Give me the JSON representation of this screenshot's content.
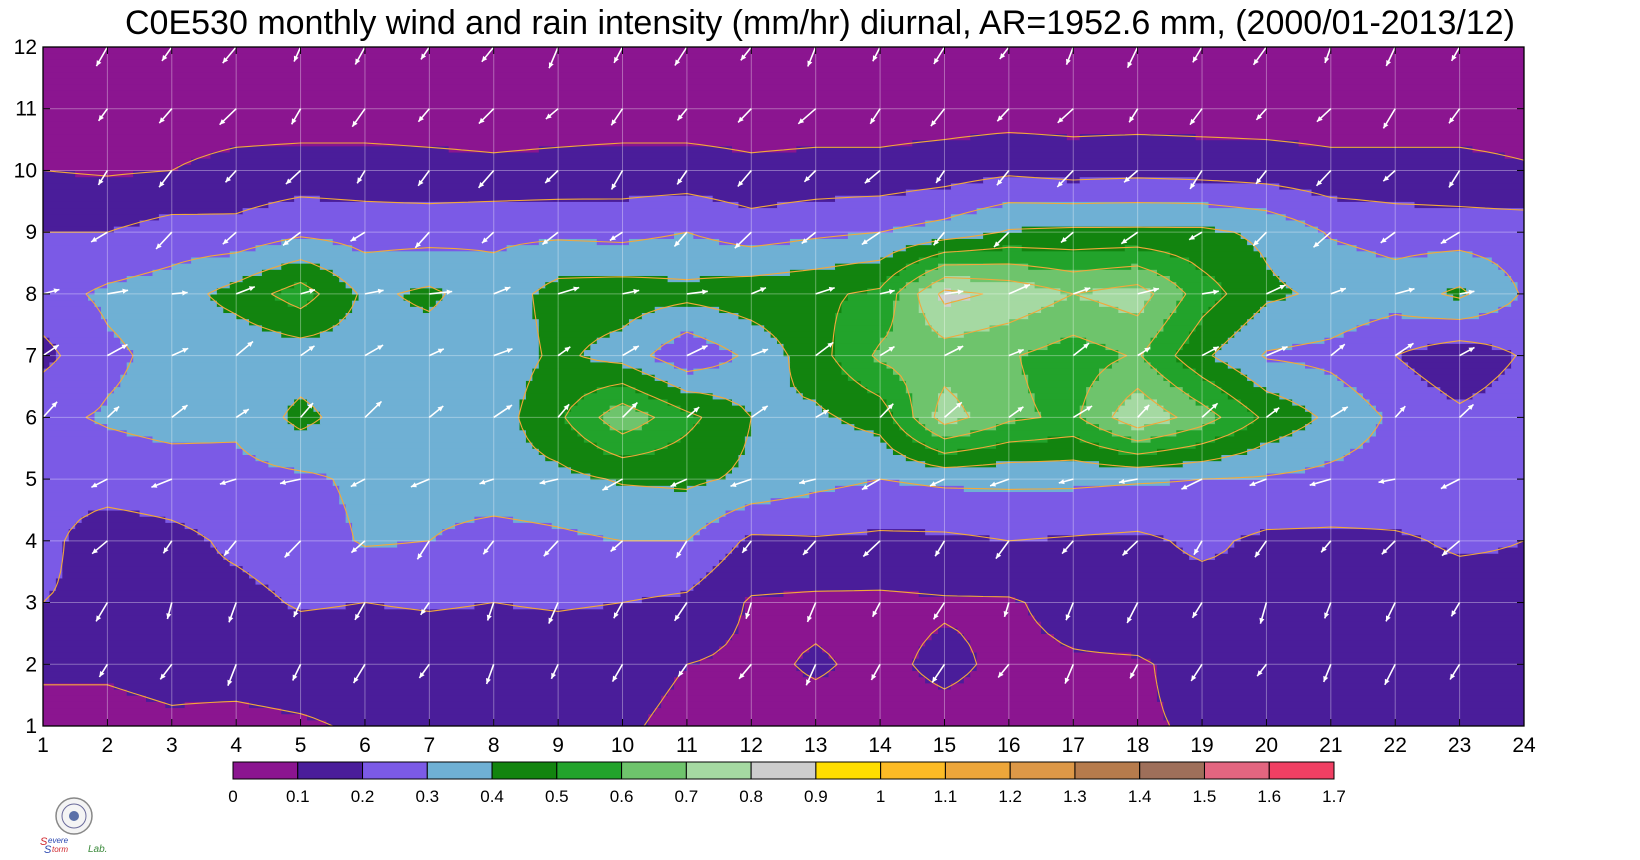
{
  "chart_data": {
    "type": "heatmap",
    "subtype": "filled-contour with wind vectors",
    "title": "C0E530 monthly wind and rain intensity (mm/hr) diurnal, AR=1952.6 mm, (2000/01-2013/12)",
    "x_ticks": [
      "1",
      "2",
      "3",
      "4",
      "5",
      "6",
      "7",
      "8",
      "9",
      "10",
      "11",
      "12",
      "13",
      "14",
      "15",
      "16",
      "17",
      "18",
      "19",
      "20",
      "21",
      "22",
      "23",
      "24"
    ],
    "y_ticks": [
      "1",
      "2",
      "3",
      "4",
      "5",
      "6",
      "7",
      "8",
      "9",
      "10",
      "11",
      "12"
    ],
    "xlim": [
      1,
      24
    ],
    "ylim": [
      1,
      12
    ],
    "grid": true,
    "x": [
      1,
      2,
      3,
      4,
      5,
      6,
      7,
      8,
      9,
      10,
      11,
      12,
      13,
      14,
      15,
      16,
      17,
      18,
      19,
      20,
      21,
      22,
      23,
      24
    ],
    "y": [
      1,
      2,
      3,
      4,
      5,
      6,
      7,
      8,
      9,
      10,
      11,
      12
    ],
    "z": [
      [
        0.08,
        0.08,
        0.09,
        0.08,
        0.09,
        0.11,
        0.11,
        0.1,
        0.1,
        0.11,
        0.08,
        0.08,
        0.07,
        0.07,
        0.07,
        0.07,
        0.08,
        0.09,
        0.11,
        0.11,
        0.11,
        0.11,
        0.1,
        0.11
      ],
      [
        0.11,
        0.11,
        0.12,
        0.13,
        0.14,
        0.14,
        0.14,
        0.14,
        0.14,
        0.13,
        0.1,
        0.08,
        0.11,
        0.08,
        0.12,
        0.08,
        0.09,
        0.09,
        0.13,
        0.15,
        0.15,
        0.11,
        0.16,
        0.16
      ],
      [
        0.2,
        0.18,
        0.18,
        0.17,
        0.21,
        0.2,
        0.21,
        0.2,
        0.21,
        0.2,
        0.18,
        0.09,
        0.08,
        0.08,
        0.09,
        0.09,
        0.13,
        0.16,
        0.16,
        0.19,
        0.19,
        0.17,
        0.17,
        0.18
      ],
      [
        0.23,
        0.14,
        0.17,
        0.22,
        0.25,
        0.31,
        0.3,
        0.26,
        0.28,
        0.3,
        0.3,
        0.18,
        0.19,
        0.18,
        0.18,
        0.2,
        0.19,
        0.18,
        0.22,
        0.18,
        0.18,
        0.19,
        0.21,
        0.2
      ],
      [
        0.23,
        0.25,
        0.26,
        0.27,
        0.28,
        0.32,
        0.34,
        0.36,
        0.37,
        0.41,
        0.42,
        0.38,
        0.33,
        0.3,
        0.32,
        0.32,
        0.32,
        0.31,
        0.3,
        0.29,
        0.27,
        0.25,
        0.24,
        0.23
      ],
      [
        0.28,
        0.31,
        0.33,
        0.32,
        0.43,
        0.34,
        0.37,
        0.35,
        0.48,
        0.67,
        0.53,
        0.4,
        0.38,
        0.44,
        0.75,
        0.62,
        0.58,
        0.78,
        0.65,
        0.48,
        0.38,
        0.28,
        0.22,
        0.26
      ],
      [
        0.17,
        0.28,
        0.33,
        0.32,
        0.34,
        0.35,
        0.35,
        0.34,
        0.42,
        0.36,
        0.22,
        0.32,
        0.46,
        0.62,
        0.65,
        0.61,
        0.55,
        0.61,
        0.42,
        0.29,
        0.27,
        0.2,
        0.13,
        0.21
      ],
      [
        0.26,
        0.32,
        0.35,
        0.44,
        0.55,
        0.38,
        0.42,
        0.34,
        0.44,
        0.45,
        0.43,
        0.46,
        0.48,
        0.52,
        0.83,
        0.78,
        0.7,
        0.75,
        0.55,
        0.42,
        0.38,
        0.35,
        0.42,
        0.29
      ],
      [
        0.2,
        0.2,
        0.24,
        0.23,
        0.28,
        0.26,
        0.26,
        0.28,
        0.28,
        0.27,
        0.3,
        0.25,
        0.28,
        0.3,
        0.34,
        0.41,
        0.42,
        0.42,
        0.42,
        0.38,
        0.29,
        0.26,
        0.25,
        0.25
      ],
      [
        0.1,
        0.09,
        0.1,
        0.13,
        0.14,
        0.14,
        0.13,
        0.12,
        0.13,
        0.14,
        0.14,
        0.12,
        0.13,
        0.13,
        0.15,
        0.18,
        0.16,
        0.17,
        0.16,
        0.15,
        0.13,
        0.13,
        0.13,
        0.11
      ],
      [
        0.05,
        0.05,
        0.05,
        0.05,
        0.05,
        0.05,
        0.05,
        0.05,
        0.05,
        0.05,
        0.05,
        0.05,
        0.05,
        0.05,
        0.05,
        0.05,
        0.05,
        0.05,
        0.05,
        0.05,
        0.05,
        0.05,
        0.05,
        0.05
      ],
      [
        0.04,
        0.04,
        0.04,
        0.04,
        0.04,
        0.04,
        0.04,
        0.04,
        0.04,
        0.04,
        0.04,
        0.04,
        0.04,
        0.04,
        0.04,
        0.04,
        0.04,
        0.04,
        0.04,
        0.04,
        0.04,
        0.04,
        0.04,
        0.04
      ]
    ],
    "wind": {
      "comment": "arrow direction by month row, in degrees (0 = east, 90 = north)",
      "rows": [
        {
          "y": 1,
          "angle": -120
        },
        {
          "y": 2,
          "angle": -120
        },
        {
          "y": 3,
          "angle": -115
        },
        {
          "y": 4,
          "angle": -130
        },
        {
          "y": 5,
          "angle": -160
        },
        {
          "y": 6,
          "angle": 40
        },
        {
          "y": 7,
          "angle": 30
        },
        {
          "y": 8,
          "angle": 15
        },
        {
          "y": 9,
          "angle": -140
        },
        {
          "y": 10,
          "angle": -130
        },
        {
          "y": 11,
          "angle": -130
        },
        {
          "y": 12,
          "angle": -120
        }
      ]
    },
    "colorbar": {
      "levels": [
        "0",
        "0.1",
        "0.2",
        "0.3",
        "0.4",
        "0.5",
        "0.6",
        "0.7",
        "0.8",
        "0.9",
        "1",
        "1.1",
        "1.2",
        "1.3",
        "1.4",
        "1.5",
        "1.6",
        "1.7"
      ],
      "colors": [
        "#8b1590",
        "#4a1d9a",
        "#7b5ae6",
        "#6fb0d4",
        "#12840f",
        "#22a32b",
        "#6ec46c",
        "#a5d9a2",
        "#cdcdcd",
        "#ffde00",
        "#fcbb25",
        "#eda63a",
        "#dd9847",
        "#b67b4c",
        "#9e6f5a",
        "#e36580",
        "#f03f63",
        "#d8283c"
      ]
    },
    "contour_line_color": "#f2a83a",
    "logo_text": "Severe Storm Lab."
  }
}
